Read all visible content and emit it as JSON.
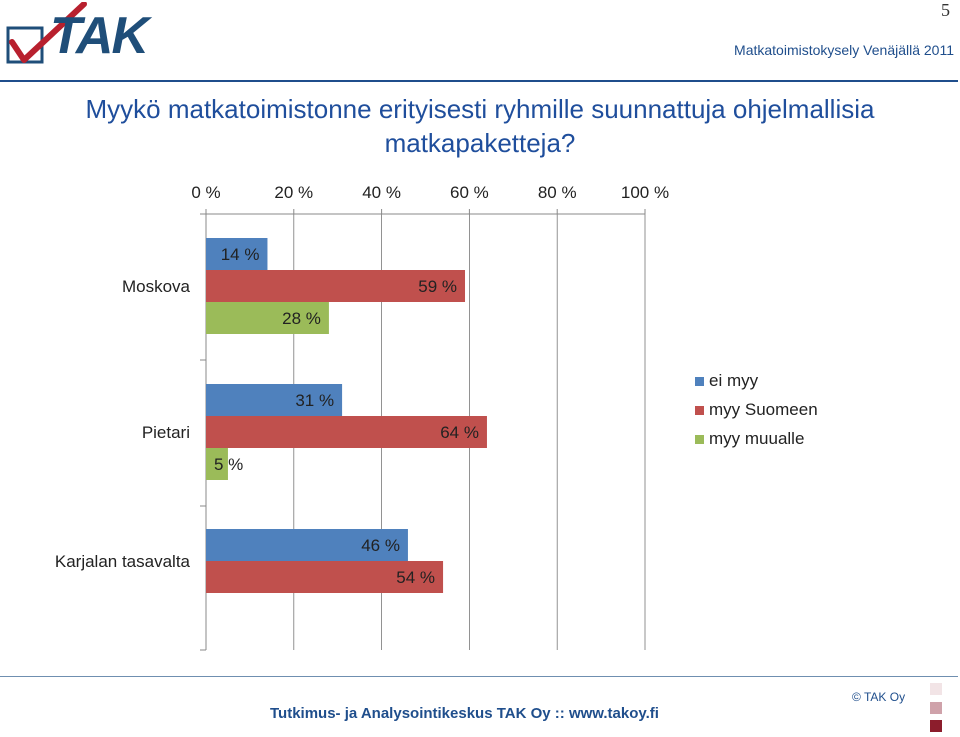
{
  "page_number": "5",
  "header": {
    "logo_text": "TAK",
    "subtitle": "Matkatoimistokysely Venäjällä 2011"
  },
  "title_lines": [
    "Myykö matkatoimistonne erityisesti ryhmille suunnattuja ohjelmallisia",
    "matkapaketteja?"
  ],
  "footer": {
    "text": "Tutkimus- ja Analysointikeskus TAK Oy  ::  www.takoy.fi",
    "copyright": "© TAK Oy"
  },
  "colors": {
    "brand": "#1f4e8c",
    "series_blue": "#4f81bd",
    "series_red": "#c0504d",
    "series_green": "#9bbb59"
  },
  "chart_data": {
    "type": "bar",
    "orientation": "horizontal",
    "categories": [
      "Moskova",
      "Pietari",
      "Karjalan tasavalta"
    ],
    "series": [
      {
        "name": "ei myy",
        "values": [
          14,
          31,
          46
        ]
      },
      {
        "name": "myy Suomeen",
        "values": [
          59,
          64,
          54
        ]
      },
      {
        "name": "myy muualle",
        "values": [
          28,
          5,
          null
        ]
      }
    ],
    "value_labels": [
      [
        "14 %",
        "31 %",
        "46 %"
      ],
      [
        "59 %",
        "64 %",
        "54 %"
      ],
      [
        "28 %",
        "5 %",
        ""
      ]
    ],
    "xaxis": {
      "ticks": [
        "0 %",
        "20 %",
        "40 %",
        "60 %",
        "80 %",
        "100 %"
      ],
      "tick_values": [
        0,
        20,
        40,
        60,
        80,
        100
      ],
      "position": "top"
    },
    "xlim": [
      0,
      100
    ],
    "grid": true,
    "legend": "right"
  }
}
